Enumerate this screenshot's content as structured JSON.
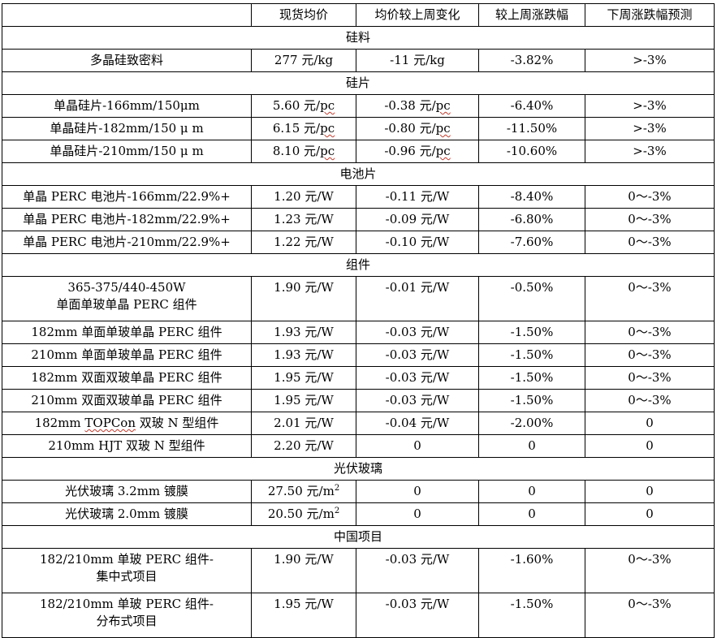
{
  "headers": [
    "",
    "现货均价",
    "均价较上周变化",
    "较上周涨跌幅",
    "下周涨跌幅预测"
  ],
  "sections": [
    {
      "category": "硅料",
      "rows": [
        {
          "name": [
            "多晶硅致密料"
          ],
          "price": "277 元/kg",
          "change": "-11 元/kg",
          "pct": "-3.82%",
          "forecast": ">-3%"
        }
      ]
    },
    {
      "category": "硅片",
      "rows": [
        {
          "name": [
            "单晶硅片-166mm/150μm"
          ],
          "price": "5.60 元/pc",
          "change": "-0.38 元/pc",
          "pct": "-6.40%",
          "forecast": ">-3%"
        },
        {
          "name": [
            "单晶硅片-182mm/150 μ m"
          ],
          "price": "6.15 元/pc",
          "change": "-0.80 元/pc",
          "pct": "-11.50%",
          "forecast": ">-3%"
        },
        {
          "name": [
            "单晶硅片-210mm/150 μ m"
          ],
          "price": "8.10 元/pc",
          "change": "-0.96 元/pc",
          "pct": "-10.60%",
          "forecast": ">-3%"
        }
      ]
    },
    {
      "category": "电池片",
      "rows": [
        {
          "name": [
            "单晶 PERC 电池片-166mm/22.9%+"
          ],
          "price": "1.20 元/W",
          "change": "-0.11 元/W",
          "pct": "-8.40%",
          "forecast": "0～-3%"
        },
        {
          "name": [
            "单晶 PERC 电池片-182mm/22.9%+"
          ],
          "price": "1.23 元/W",
          "change": "-0.09 元/W",
          "pct": "-6.80%",
          "forecast": "0～-3%"
        },
        {
          "name": [
            "单晶 PERC 电池片-210mm/22.9%+"
          ],
          "price": "1.22 元/W",
          "change": "-0.10 元/W",
          "pct": "-7.60%",
          "forecast": "0～-3%"
        }
      ]
    },
    {
      "category": "组件",
      "rows": [
        {
          "name": [
            "365-375/440-450W",
            "单面单玻单晶 PERC 组件"
          ],
          "price": "1.90 元/W",
          "change": "-0.01 元/W",
          "pct": "-0.50%",
          "forecast": "0～-3%"
        },
        {
          "name": [
            "182mm 单面单玻单晶 PERC 组件"
          ],
          "price": "1.93 元/W",
          "change": "-0.03 元/W",
          "pct": "-1.50%",
          "forecast": "0～-3%"
        },
        {
          "name": [
            "210mm 单面单玻单晶 PERC 组件"
          ],
          "price": "1.93 元/W",
          "change": "-0.03 元/W",
          "pct": "-1.50%",
          "forecast": "0～-3%"
        },
        {
          "name": [
            "182mm 双面双玻单晶 PERC 组件"
          ],
          "price": "1.95 元/W",
          "change": "-0.03 元/W",
          "pct": "-1.50%",
          "forecast": "0～-3%"
        },
        {
          "name": [
            "210mm 双面双玻单晶 PERC 组件"
          ],
          "price": "1.95 元/W",
          "change": "-0.03 元/W",
          "pct": "-1.50%",
          "forecast": "0～-3%"
        },
        {
          "name": [
            "182mm TOPCon 双玻 N 型组件"
          ],
          "price": "2.01 元/W",
          "change": "-0.04 元/W",
          "pct": "-2.00%",
          "forecast": "0"
        },
        {
          "name": [
            "210mm HJT 双玻 N 型组件"
          ],
          "price": "2.20 元/W",
          "change": "0",
          "pct": "0",
          "forecast": "0"
        }
      ]
    },
    {
      "category": "光伏玻璃",
      "rows": [
        {
          "name": [
            "光伏玻璃 3.2mm 镀膜"
          ],
          "price": "27.50 元/m",
          "price_sup": "2",
          "change": "0",
          "pct": "0",
          "forecast": "0"
        },
        {
          "name": [
            "光伏玻璃 2.0mm 镀膜"
          ],
          "price": "20.50 元/m",
          "price_sup": "2",
          "change": "0",
          "pct": "0",
          "forecast": "0"
        }
      ]
    },
    {
      "category": "中国项目",
      "rows": [
        {
          "name": [
            "182/210mm  单玻 PERC 组件-",
            "集中式项目"
          ],
          "price": "1.90 元/W",
          "change": "-0.03 元/W",
          "pct": "-1.60%",
          "forecast": "0～-3%"
        },
        {
          "name": [
            "182/210mm  单玻 PERC 组件-",
            "分布式项目"
          ],
          "price": "1.95 元/W",
          "change": "-0.03 元/W",
          "pct": "-1.50%",
          "forecast": "0～-3%"
        }
      ]
    }
  ]
}
